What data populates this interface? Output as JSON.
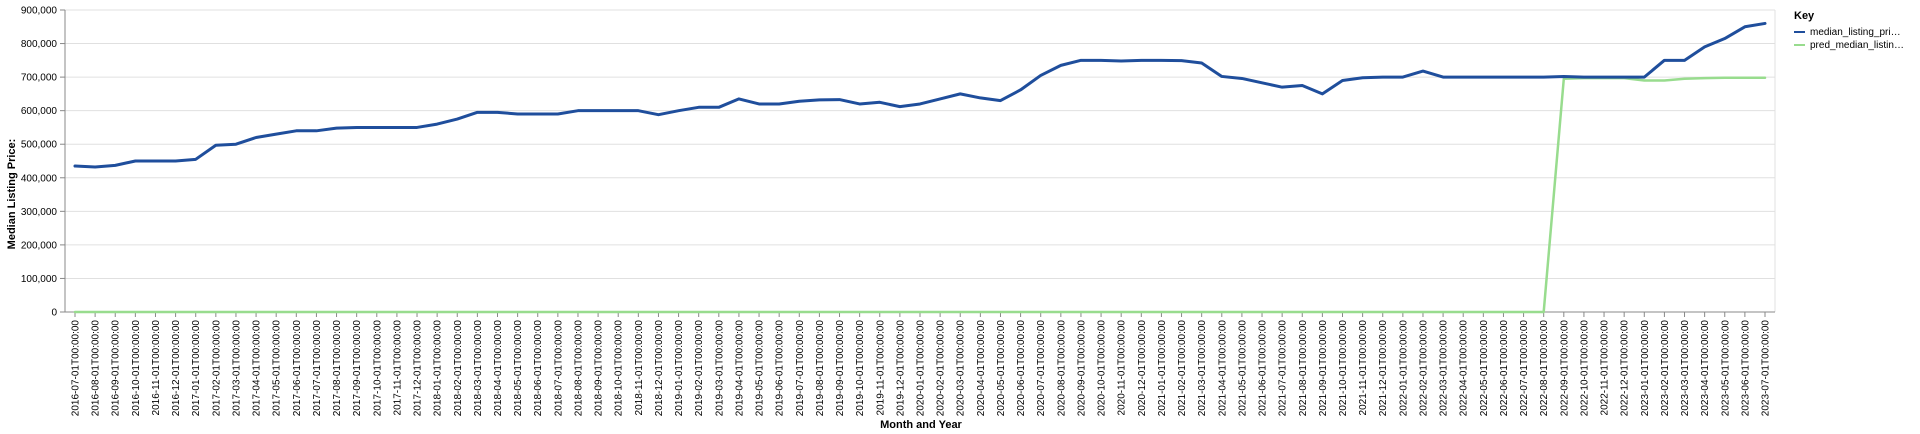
{
  "chart_data": {
    "type": "line",
    "xlabel": "Month and Year",
    "ylabel": "Median Listing Price:",
    "ylim": [
      0,
      900000
    ],
    "y_ticks": [
      0,
      100000,
      200000,
      300000,
      400000,
      500000,
      600000,
      700000,
      800000,
      900000
    ],
    "y_tick_labels": [
      "0",
      "100,000",
      "200,000",
      "300,000",
      "400,000",
      "500,000",
      "600,000",
      "700,000",
      "800,000",
      "900,000"
    ],
    "grid": "horizontal",
    "legend": {
      "title": "Key",
      "placement": "top-right",
      "labels": [
        "median_listing_pri…",
        "pred_median_listin…"
      ]
    },
    "colors": {
      "median_listing_price": "#1f4e9c",
      "pred_median_listing_price": "#98dc8e",
      "grid": "#e0e0e0",
      "axis": "#888888"
    },
    "x": [
      "2016-07-01T00:00:00",
      "2016-08-01T00:00:00",
      "2016-09-01T00:00:00",
      "2016-10-01T00:00:00",
      "2016-11-01T00:00:00",
      "2016-12-01T00:00:00",
      "2017-01-01T00:00:00",
      "2017-02-01T00:00:00",
      "2017-03-01T00:00:00",
      "2017-04-01T00:00:00",
      "2017-05-01T00:00:00",
      "2017-06-01T00:00:00",
      "2017-07-01T00:00:00",
      "2017-08-01T00:00:00",
      "2017-09-01T00:00:00",
      "2017-10-01T00:00:00",
      "2017-11-01T00:00:00",
      "2017-12-01T00:00:00",
      "2018-01-01T00:00:00",
      "2018-02-01T00:00:00",
      "2018-03-01T00:00:00",
      "2018-04-01T00:00:00",
      "2018-05-01T00:00:00",
      "2018-06-01T00:00:00",
      "2018-07-01T00:00:00",
      "2018-08-01T00:00:00",
      "2018-09-01T00:00:00",
      "2018-10-01T00:00:00",
      "2018-11-01T00:00:00",
      "2018-12-01T00:00:00",
      "2019-01-01T00:00:00",
      "2019-02-01T00:00:00",
      "2019-03-01T00:00:00",
      "2019-04-01T00:00:00",
      "2019-05-01T00:00:00",
      "2019-06-01T00:00:00",
      "2019-07-01T00:00:00",
      "2019-08-01T00:00:00",
      "2019-09-01T00:00:00",
      "2019-10-01T00:00:00",
      "2019-11-01T00:00:00",
      "2019-12-01T00:00:00",
      "2020-01-01T00:00:00",
      "2020-02-01T00:00:00",
      "2020-03-01T00:00:00",
      "2020-04-01T00:00:00",
      "2020-05-01T00:00:00",
      "2020-06-01T00:00:00",
      "2020-07-01T00:00:00",
      "2020-08-01T00:00:00",
      "2020-09-01T00:00:00",
      "2020-10-01T00:00:00",
      "2020-11-01T00:00:00",
      "2020-12-01T00:00:00",
      "2021-01-01T00:00:00",
      "2021-02-01T00:00:00",
      "2021-03-01T00:00:00",
      "2021-04-01T00:00:00",
      "2021-05-01T00:00:00",
      "2021-06-01T00:00:00",
      "2021-07-01T00:00:00",
      "2021-08-01T00:00:00",
      "2021-09-01T00:00:00",
      "2021-10-01T00:00:00",
      "2021-11-01T00:00:00",
      "2021-12-01T00:00:00",
      "2022-01-01T00:00:00",
      "2022-02-01T00:00:00",
      "2022-03-01T00:00:00",
      "2022-04-01T00:00:00",
      "2022-05-01T00:00:00",
      "2022-06-01T00:00:00",
      "2022-07-01T00:00:00",
      "2022-08-01T00:00:00",
      "2022-09-01T00:00:00",
      "2022-10-01T00:00:00",
      "2022-11-01T00:00:00",
      "2022-12-01T00:00:00",
      "2023-01-01T00:00:00",
      "2023-02-01T00:00:00",
      "2023-03-01T00:00:00",
      "2023-04-01T00:00:00",
      "2023-05-01T00:00:00",
      "2023-06-01T00:00:00",
      "2023-07-01T00:00:00"
    ],
    "series": [
      {
        "name": "median_listing_pri…",
        "values": [
          435000,
          432000,
          437000,
          450000,
          450000,
          450000,
          455000,
          497000,
          500000,
          520000,
          530000,
          540000,
          540000,
          548000,
          550000,
          550000,
          550000,
          550000,
          560000,
          575000,
          595000,
          595000,
          590000,
          590000,
          590000,
          600000,
          600000,
          600000,
          600000,
          588000,
          600000,
          610000,
          610000,
          635000,
          620000,
          620000,
          628000,
          632000,
          633000,
          620000,
          625000,
          612000,
          620000,
          635000,
          650000,
          638000,
          630000,
          662000,
          705000,
          735000,
          750000,
          750000,
          748000,
          750000,
          750000,
          749000,
          742000,
          702000,
          696000,
          683000,
          670000,
          675000,
          650000,
          690000,
          698000,
          700000,
          700000,
          718000,
          700000,
          700000,
          700000,
          700000,
          700000,
          700000,
          702000,
          700000,
          700000,
          700000,
          700000,
          750000,
          750000,
          790000,
          815000,
          850000,
          860000
        ]
      },
      {
        "name": "pred_median_listin…",
        "values": [
          0,
          0,
          0,
          0,
          0,
          0,
          0,
          0,
          0,
          0,
          0,
          0,
          0,
          0,
          0,
          0,
          0,
          0,
          0,
          0,
          0,
          0,
          0,
          0,
          0,
          0,
          0,
          0,
          0,
          0,
          0,
          0,
          0,
          0,
          0,
          0,
          0,
          0,
          0,
          0,
          0,
          0,
          0,
          0,
          0,
          0,
          0,
          0,
          0,
          0,
          0,
          0,
          0,
          0,
          0,
          0,
          0,
          0,
          0,
          0,
          0,
          0,
          0,
          0,
          0,
          0,
          0,
          0,
          0,
          0,
          0,
          0,
          0,
          0,
          695000,
          697000,
          697000,
          697000,
          690000,
          690000,
          695000,
          697000,
          698000,
          698000,
          698000
        ]
      }
    ]
  }
}
